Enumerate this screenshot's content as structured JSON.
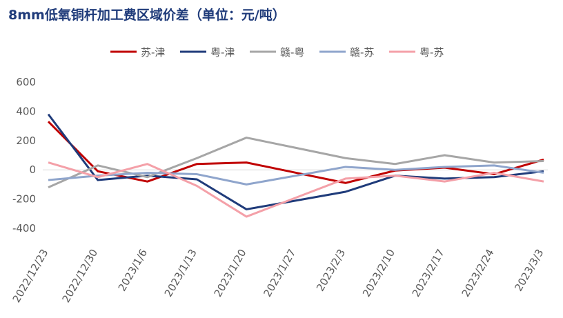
{
  "chart_data": {
    "type": "line",
    "title": "8mm低氧铜杆加工费区域价差（单位：元/吨）",
    "categories": [
      "2022/12/23",
      "2022/12/30",
      "2023/1/6",
      "2023/1/13",
      "2023/1/20",
      "2023/1/27",
      "2023/2/3",
      "2023/2/10",
      "2023/2/17",
      "2023/2/24",
      "2023/3/3"
    ],
    "series": [
      {
        "name": "苏-津",
        "color": "#c00000",
        "values": [
          330,
          -10,
          -80,
          40,
          50,
          -20,
          -90,
          -5,
          15,
          -30,
          70
        ]
      },
      {
        "name": "粤-津",
        "color": "#1f3b7a",
        "values": [
          380,
          -70,
          -40,
          -65,
          -270,
          -210,
          -150,
          -40,
          -60,
          -50,
          -10
        ]
      },
      {
        "name": "赣-粤",
        "color": "#a6a6a6",
        "values": [
          -120,
          30,
          -50,
          80,
          220,
          150,
          80,
          40,
          100,
          50,
          60
        ]
      },
      {
        "name": "赣-苏",
        "color": "#8fa5cc",
        "values": [
          -70,
          -40,
          -20,
          -30,
          -100,
          -40,
          20,
          0,
          20,
          30,
          -20
        ]
      },
      {
        "name": "粤-苏",
        "color": "#f4a0a8",
        "values": [
          50,
          -50,
          40,
          -110,
          -320,
          -190,
          -60,
          -40,
          -80,
          -20,
          -80
        ]
      }
    ],
    "ylim": [
      -400,
      600
    ],
    "yticks": [
      -400,
      -200,
      0,
      200,
      400,
      600
    ]
  }
}
